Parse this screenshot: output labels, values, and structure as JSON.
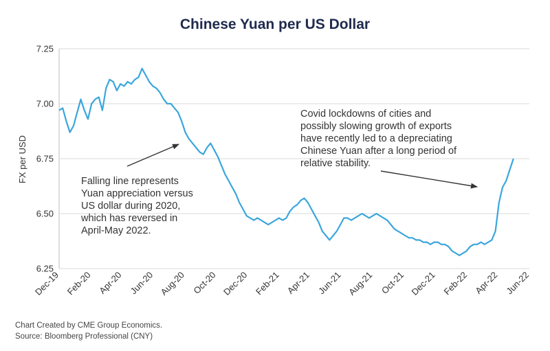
{
  "chart_data": {
    "type": "line",
    "title": "Chinese Yuan per US Dollar",
    "xlabel": "",
    "ylabel": "FX per USD",
    "ylim": [
      6.25,
      7.25
    ],
    "yticks": [
      "6.25",
      "6.50",
      "6.75",
      "7.00",
      "7.25"
    ],
    "xlim": [
      "2019-12-01",
      "2022-06-01"
    ],
    "xticks": [
      "Dec-19",
      "Feb-20",
      "Apr-20",
      "Jun-20",
      "Aug-20",
      "Oct-20",
      "Dec-20",
      "Feb-21",
      "Apr-21",
      "Jun-21",
      "Aug-21",
      "Oct-21",
      "Dec-21",
      "Feb-22",
      "Apr-22",
      "Jun-22"
    ],
    "grid": "horizontal",
    "line_color": "#3aa6dd",
    "series": [
      {
        "name": "",
        "x": [
          "2019-12-01",
          "2019-12-08",
          "2019-12-15",
          "2019-12-22",
          "2019-12-29",
          "2020-01-05",
          "2020-01-12",
          "2020-01-19",
          "2020-01-26",
          "2020-02-02",
          "2020-02-09",
          "2020-02-16",
          "2020-02-23",
          "2020-03-01",
          "2020-03-08",
          "2020-03-15",
          "2020-03-22",
          "2020-03-29",
          "2020-04-05",
          "2020-04-12",
          "2020-04-19",
          "2020-04-26",
          "2020-05-03",
          "2020-05-10",
          "2020-05-17",
          "2020-05-24",
          "2020-05-31",
          "2020-06-07",
          "2020-06-14",
          "2020-06-21",
          "2020-06-28",
          "2020-07-05",
          "2020-07-12",
          "2020-07-19",
          "2020-07-26",
          "2020-08-02",
          "2020-08-09",
          "2020-08-16",
          "2020-08-23",
          "2020-08-30",
          "2020-09-06",
          "2020-09-13",
          "2020-09-20",
          "2020-09-27",
          "2020-10-04",
          "2020-10-11",
          "2020-10-18",
          "2020-10-25",
          "2020-11-01",
          "2020-11-08",
          "2020-11-15",
          "2020-11-22",
          "2020-11-29",
          "2020-12-06",
          "2020-12-13",
          "2020-12-20",
          "2020-12-27",
          "2021-01-03",
          "2021-01-10",
          "2021-01-17",
          "2021-01-24",
          "2021-01-31",
          "2021-02-07",
          "2021-02-14",
          "2021-02-21",
          "2021-02-28",
          "2021-03-07",
          "2021-03-14",
          "2021-03-21",
          "2021-03-28",
          "2021-04-04",
          "2021-04-11",
          "2021-04-18",
          "2021-04-25",
          "2021-05-02",
          "2021-05-09",
          "2021-05-16",
          "2021-05-23",
          "2021-05-30",
          "2021-06-06",
          "2021-06-13",
          "2021-06-20",
          "2021-06-27",
          "2021-07-04",
          "2021-07-11",
          "2021-07-18",
          "2021-07-25",
          "2021-08-01",
          "2021-08-08",
          "2021-08-15",
          "2021-08-22",
          "2021-08-29",
          "2021-09-05",
          "2021-09-12",
          "2021-09-19",
          "2021-09-26",
          "2021-10-03",
          "2021-10-10",
          "2021-10-17",
          "2021-10-24",
          "2021-10-31",
          "2021-11-07",
          "2021-11-14",
          "2021-11-21",
          "2021-11-28",
          "2021-12-05",
          "2021-12-12",
          "2021-12-19",
          "2021-12-26",
          "2022-01-02",
          "2022-01-09",
          "2022-01-16",
          "2022-01-23",
          "2022-01-30",
          "2022-02-06",
          "2022-02-13",
          "2022-02-20",
          "2022-02-27",
          "2022-03-06",
          "2022-03-13",
          "2022-03-20",
          "2022-03-27",
          "2022-04-03",
          "2022-04-10",
          "2022-04-17",
          "2022-04-24",
          "2022-05-01"
        ],
        "y": [
          6.97,
          6.98,
          6.92,
          6.87,
          6.9,
          6.96,
          7.02,
          6.97,
          6.93,
          7.0,
          7.02,
          7.03,
          6.97,
          7.07,
          7.11,
          7.1,
          7.06,
          7.09,
          7.08,
          7.1,
          7.09,
          7.11,
          7.12,
          7.16,
          7.13,
          7.1,
          7.08,
          7.07,
          7.05,
          7.02,
          7.0,
          7.0,
          6.98,
          6.96,
          6.92,
          6.87,
          6.84,
          6.82,
          6.8,
          6.78,
          6.77,
          6.8,
          6.82,
          6.79,
          6.76,
          6.72,
          6.68,
          6.65,
          6.62,
          6.59,
          6.55,
          6.52,
          6.49,
          6.48,
          6.47,
          6.48,
          6.47,
          6.46,
          6.45,
          6.46,
          6.47,
          6.48,
          6.47,
          6.48,
          6.51,
          6.53,
          6.54,
          6.56,
          6.57,
          6.55,
          6.52,
          6.49,
          6.46,
          6.42,
          6.4,
          6.38,
          6.4,
          6.42,
          6.45,
          6.48,
          6.48,
          6.47,
          6.48,
          6.49,
          6.5,
          6.49,
          6.48,
          6.49,
          6.5,
          6.49,
          6.48,
          6.47,
          6.45,
          6.43,
          6.42,
          6.41,
          6.4,
          6.39,
          6.39,
          6.38,
          6.38,
          6.37,
          6.37,
          6.36,
          6.37,
          6.37,
          6.36,
          6.36,
          6.35,
          6.33,
          6.32,
          6.31,
          6.32,
          6.33,
          6.35,
          6.36,
          6.36,
          6.37,
          6.36,
          6.37,
          6.38,
          6.42,
          6.55,
          6.62,
          6.65,
          6.7,
          6.75
        ]
      }
    ],
    "annotations": [
      {
        "lines": [
          "Falling line represents",
          "Yuan appreciation versus",
          "US dollar during 2020,",
          "which has reversed in",
          "April-May 2022."
        ]
      },
      {
        "lines": [
          "Covid lockdowns of cities and",
          "possibly slowing growth of exports",
          "have recently led to a depreciating",
          "Chinese Yuan after a long period of",
          "relative stability."
        ]
      }
    ]
  },
  "footer": {
    "credit": "Chart Created by CME Group Economics.",
    "source": "Source:  Bloomberg Professional (CNY)"
  }
}
